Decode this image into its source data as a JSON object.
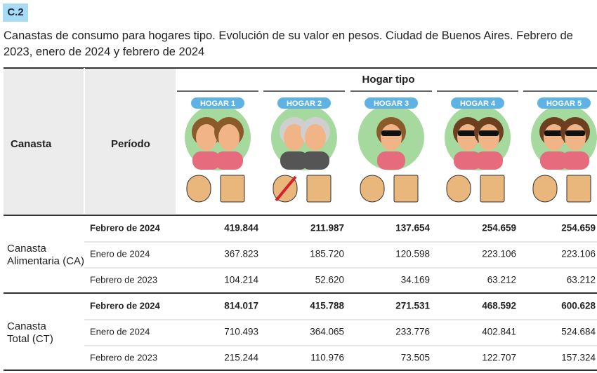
{
  "badge": "C.2",
  "title": "Canastas de consumo para hogares tipo. Evolución de su valor en pesos. Ciudad de Buenos Aires. Febrero de 2023, enero de 2024 y febrero de 2024",
  "table": {
    "headers": {
      "canasta": "Canasta",
      "periodo": "Período",
      "hogar_tipo": "Hogar tipo",
      "hogares": [
        "HOGAR 1",
        "HOGAR 2",
        "HOGAR 3",
        "HOGAR 4",
        "HOGAR 5"
      ]
    },
    "groups": [
      {
        "label": [
          "Canasta",
          "Alimentaria (CA)"
        ],
        "rows": [
          {
            "period": "Febrero de 2024",
            "values": [
              "419.844",
              "211.987",
              "137.654",
              "254.659",
              "254.659"
            ]
          },
          {
            "period": "Enero de 2024",
            "values": [
              "367.823",
              "185.720",
              "120.598",
              "223.106",
              "223.106"
            ]
          },
          {
            "period": "Febrero de 2023",
            "values": [
              "104.214",
              "52.620",
              "34.169",
              "63.212",
              "63.212"
            ]
          }
        ]
      },
      {
        "label": [
          "Canasta",
          "Total (CT)"
        ],
        "rows": [
          {
            "period": "Febrero de 2024",
            "values": [
              "814.017",
              "415.788",
              "271.531",
              "468.592",
              "600.628"
            ]
          },
          {
            "period": "Enero de 2024",
            "values": [
              "710.493",
              "364.065",
              "233.776",
              "402.841",
              "524.684"
            ]
          },
          {
            "period": "Febrero de 2023",
            "values": [
              "215.244",
              "110.976",
              "73.505",
              "122.707",
              "157.324"
            ]
          }
        ]
      }
    ]
  }
}
